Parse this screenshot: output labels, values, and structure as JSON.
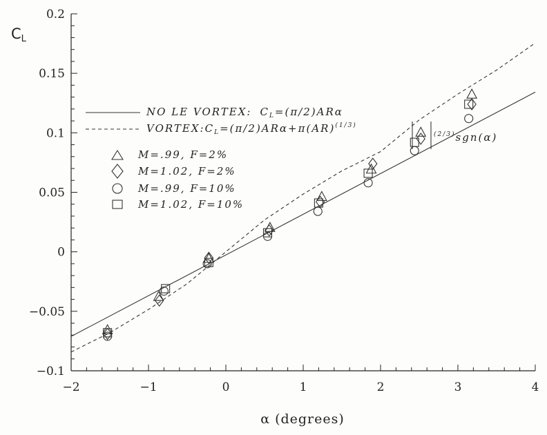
{
  "chart_data": {
    "type": "scatter",
    "title": "",
    "xlabel": "α (degrees)",
    "ylabel": "C_L",
    "xlim": [
      -2,
      4
    ],
    "ylim": [
      -0.1,
      0.2
    ],
    "xticks": [
      -2,
      -1,
      0,
      1,
      2,
      3,
      4
    ],
    "yticks": [
      -0.1,
      -0.05,
      0,
      0.05,
      0.1,
      0.15,
      0.2
    ],
    "xtick_labels": [
      "−2",
      "−1",
      "0",
      "1",
      "2",
      "3",
      "4"
    ],
    "ytick_labels": [
      "−0.1",
      "−0.05",
      "0",
      "0.05",
      "0.1",
      "0.15",
      "0.2"
    ],
    "grid": false,
    "legend_placement": "upper-left",
    "lines": [
      {
        "name": "NO LE VORTEX: C_L=(π/2)ARα",
        "style": "solid",
        "x": [
          -2,
          4
        ],
        "y": [
          -0.0711,
          0.1342
        ]
      },
      {
        "name": "VORTEX: C_L=(π/2)ARα+π(AR)^(1/3)|α|^(2/3)sgn(α)",
        "style": "dashed",
        "x": [
          -2,
          -1.5,
          -1,
          -0.5,
          0,
          0.5,
          1,
          1.5,
          2,
          2.5,
          3,
          3.5,
          4
        ],
        "y": [
          -0.0842,
          -0.068,
          -0.0485,
          -0.0268,
          0,
          0.0268,
          0.0485,
          0.068,
          0.0842,
          0.1108,
          0.1326,
          0.1527,
          0.1755
        ]
      }
    ],
    "series": [
      {
        "name": "M=.99, F=2%",
        "marker": "triangle",
        "x": [
          -1.53,
          -0.87,
          -0.22,
          0.57,
          1.24,
          1.88,
          2.52,
          3.18
        ],
        "y": [
          -0.066,
          -0.038,
          -0.006,
          0.02,
          0.046,
          0.069,
          0.1,
          0.132
        ]
      },
      {
        "name": "M=1.02, F=2%",
        "marker": "diamond",
        "x": [
          -1.53,
          -0.86,
          -0.22,
          0.56,
          1.22,
          1.9,
          2.52,
          3.18
        ],
        "y": [
          -0.069,
          -0.041,
          -0.005,
          0.018,
          0.042,
          0.074,
          0.095,
          0.124
        ]
      },
      {
        "name": "M=.99, F=10%",
        "marker": "circle",
        "x": [
          -1.53,
          -0.8,
          -0.24,
          0.54,
          1.19,
          1.84,
          2.44,
          3.14
        ],
        "y": [
          -0.071,
          -0.033,
          -0.01,
          0.013,
          0.034,
          0.058,
          0.085,
          0.112
        ]
      },
      {
        "name": "M=1.02, F=10%",
        "marker": "square",
        "x": [
          -1.53,
          -0.78,
          -0.22,
          0.54,
          1.2,
          1.84,
          2.44,
          3.14
        ],
        "y": [
          -0.068,
          -0.031,
          -0.009,
          0.016,
          0.041,
          0.066,
          0.092,
          0.124
        ]
      }
    ]
  },
  "legend": {
    "line1_label": "NO LE VORTEX:",
    "line1_formula": "C",
    "line1_sub": "L",
    "line1_rest": "=(π/2)ARα",
    "line2_label": "VORTEX:",
    "line2_formula": "C",
    "line2_sub": "L",
    "line2_rest": "=(π/2)ARα+π(AR)",
    "line2_exp": "(1/3)",
    "line2_exp2": "(2/3)",
    "line2_end": "sgn(α)",
    "m1": "M=.99,  F=2%",
    "m2": "M=1.02,  F=2%",
    "m3": "M=.99,  F=10%",
    "m4": "M=1.02,  F=10%"
  },
  "axis_text": {
    "ylabel_main": "C",
    "ylabel_sub": "L",
    "xlabel": "α  (degrees)"
  }
}
